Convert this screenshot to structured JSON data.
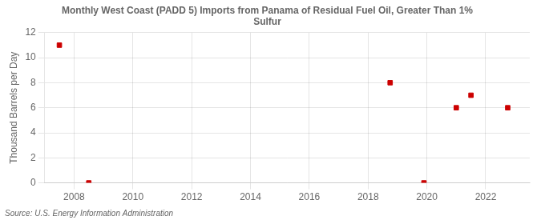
{
  "chart_data": {
    "type": "scatter",
    "title": "Monthly West Coast (PADD 5) Imports from Panama of Residual Fuel Oil, Greater Than 1%\nSulfur",
    "y_label": "Thousand Barrels per Day",
    "annotations": [
      "Source: U.S. Energy Information Administration"
    ],
    "x": [
      2007.5,
      2008.5,
      2018.75,
      2019.9,
      2021.0,
      2021.5,
      2022.75
    ],
    "values": [
      11.0,
      0.0,
      8.0,
      0.0,
      6.0,
      7.0,
      6.0
    ],
    "color": "#cc0000",
    "marker": "square",
    "xlim": [
      2007.0,
      2023.5
    ],
    "xticks": [
      2008,
      2010,
      2012,
      2014,
      2016,
      2018,
      2020,
      2022
    ],
    "ylim": [
      0,
      12
    ],
    "yticks": [
      0,
      2,
      4,
      6,
      8,
      10,
      12
    ],
    "grid": true
  }
}
